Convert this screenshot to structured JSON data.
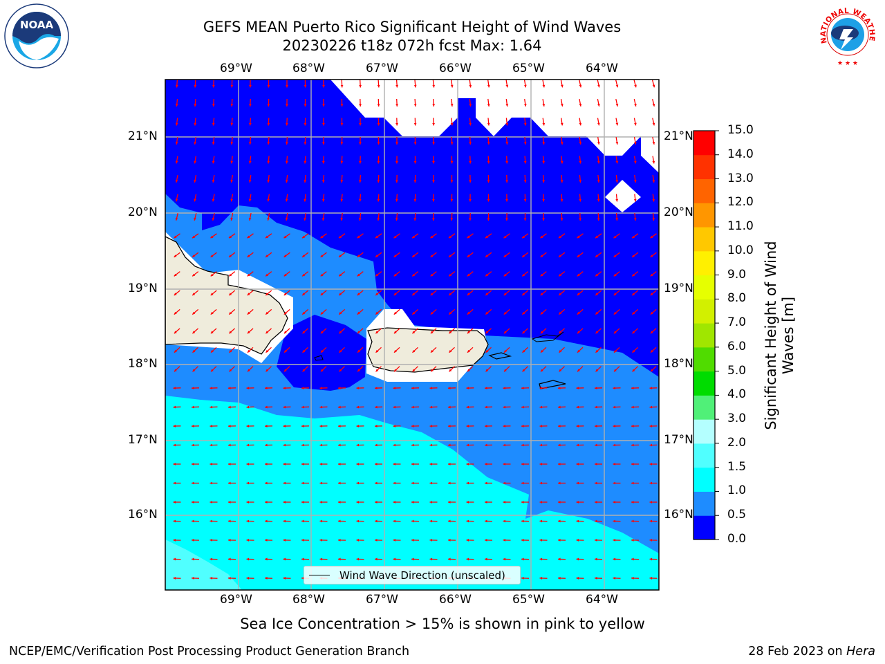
{
  "title_line1": "GEFS MEAN Puerto Rico Significant Height of Wind Waves",
  "title_line2": "20230226 t18z 072h fcst   Max: 1.64",
  "lon_ticks": [
    "69°W",
    "68°W",
    "67°W",
    "66°W",
    "65°W",
    "64°W"
  ],
  "lat_ticks": [
    "21°N",
    "20°N",
    "19°N",
    "18°N",
    "17°N",
    "16°N"
  ],
  "colorbar": {
    "label_line1": "Significant Height of Wind",
    "label_line2": "Waves [m]",
    "ticks": [
      "0.0",
      "0.5",
      "1.0",
      "1.5",
      "2.0",
      "3.0",
      "4.0",
      "5.0",
      "6.0",
      "7.0",
      "8.0",
      "9.0",
      "10.0",
      "11.0",
      "12.0",
      "13.0",
      "14.0",
      "15.0"
    ],
    "colors": [
      "#0000ff",
      "#1e8cff",
      "#00ffff",
      "#50ffff",
      "#b4ffff",
      "#50f078",
      "#00dc00",
      "#50dc00",
      "#a0e600",
      "#d2f000",
      "#e6ff00",
      "#fff000",
      "#ffc800",
      "#ff9600",
      "#ff6400",
      "#ff3200",
      "#ff0000"
    ]
  },
  "legend_label": "Wind Wave Direction (unscaled)",
  "subtitle": "Sea Ice Concentration > 15% is shown in pink to yellow",
  "footer_left": "NCEP/EMC/Verification Post Processing Product Generation Branch",
  "footer_date": "28 Feb 2023 on ",
  "footer_host": "Hera",
  "colors": {
    "arrow": "#ff0000",
    "land": "#efecdc",
    "grid": "#b0b0b0"
  },
  "logos": {
    "left": "NOAA",
    "right": "NATIONAL WEATHER SERVICE"
  }
}
